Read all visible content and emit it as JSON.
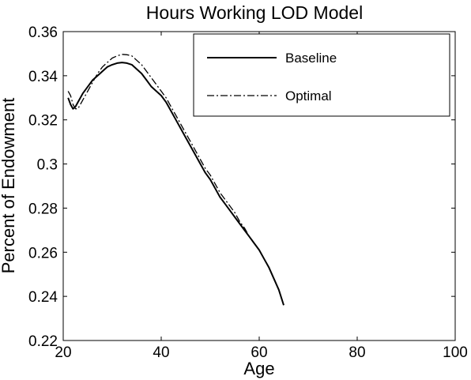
{
  "chart_data": {
    "type": "line",
    "title": "Hours Working LOD Model",
    "xlabel": "Age",
    "ylabel": "Percent of Endowment",
    "xlim": [
      20,
      100
    ],
    "ylim": [
      0.22,
      0.36
    ],
    "xticks": [
      20,
      40,
      60,
      80,
      100
    ],
    "yticks": [
      0.22,
      0.24,
      0.26,
      0.28,
      0.3,
      0.32,
      0.34,
      0.36
    ],
    "xtick_labels": [
      "20",
      "40",
      "60",
      "80",
      "100"
    ],
    "ytick_labels": [
      "0.22",
      "0.24",
      "0.26",
      "0.28",
      "0.3",
      "0.32",
      "0.34",
      "0.36"
    ],
    "grid": false,
    "legend_position": "top-right",
    "series": [
      {
        "name": "Baseline",
        "style": "solid",
        "color": "#000000",
        "x": [
          21,
          21.5,
          22,
          22.5,
          23,
          24,
          25,
          26,
          27,
          28,
          29,
          30,
          31,
          32,
          33,
          34,
          35,
          36,
          37,
          38,
          39,
          40,
          41,
          42,
          43,
          44,
          45,
          46,
          47,
          48,
          49,
          50,
          51,
          52,
          53,
          54,
          55,
          56,
          57,
          58,
          59,
          60,
          61,
          62,
          63,
          64,
          65
        ],
        "y": [
          0.33,
          0.327,
          0.325,
          0.326,
          0.328,
          0.332,
          0.335,
          0.338,
          0.34,
          0.342,
          0.344,
          0.345,
          0.3457,
          0.346,
          0.3457,
          0.345,
          0.343,
          0.341,
          0.338,
          0.335,
          0.333,
          0.331,
          0.328,
          0.324,
          0.32,
          0.316,
          0.312,
          0.308,
          0.304,
          0.3,
          0.296,
          0.293,
          0.289,
          0.285,
          0.282,
          0.279,
          0.276,
          0.273,
          0.27,
          0.267,
          0.264,
          0.261,
          0.257,
          0.253,
          0.248,
          0.243,
          0.236
        ]
      },
      {
        "name": "Optimal",
        "style": "dash-dot",
        "color": "#000000",
        "x": [
          21,
          21.5,
          22,
          22.5,
          23,
          24,
          25,
          26,
          27,
          28,
          29,
          30,
          31,
          32,
          33,
          34,
          35,
          36,
          37,
          38,
          39,
          40,
          41,
          42,
          43,
          44,
          45,
          46,
          47,
          48,
          49,
          50,
          51,
          52,
          53,
          54,
          55,
          56,
          57,
          58,
          59
        ],
        "y": [
          0.333,
          0.331,
          0.327,
          0.325,
          0.325,
          0.329,
          0.333,
          0.337,
          0.341,
          0.344,
          0.346,
          0.348,
          0.349,
          0.3497,
          0.3495,
          0.349,
          0.347,
          0.345,
          0.342,
          0.339,
          0.336,
          0.333,
          0.33,
          0.326,
          0.322,
          0.318,
          0.314,
          0.31,
          0.306,
          0.302,
          0.298,
          0.295,
          0.291,
          0.287,
          0.284,
          0.281,
          0.278,
          0.274,
          0.271,
          0.267,
          0.264
        ]
      }
    ]
  }
}
